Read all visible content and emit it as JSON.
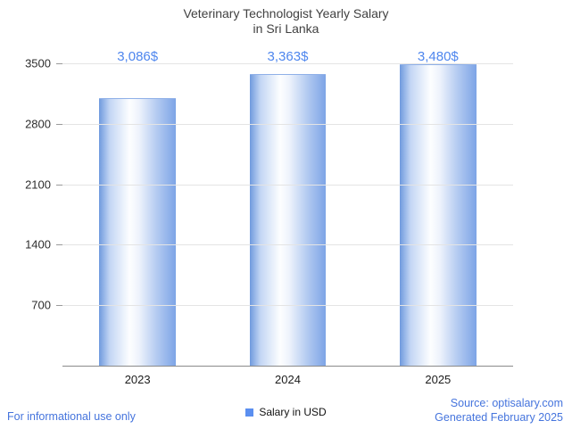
{
  "chart_data": {
    "type": "bar",
    "title": "Veterinary Technologist Yearly Salary in Sri Lanka",
    "title_lines": [
      "Veterinary Technologist Yearly Salary",
      "in Sri Lanka"
    ],
    "categories": [
      "2023",
      "2024",
      "2025"
    ],
    "values": [
      3086,
      3363,
      3480
    ],
    "value_labels": [
      "3,086$",
      "3,363$",
      "3,480$"
    ],
    "xlabel": "",
    "ylabel": "",
    "ylim": [
      0,
      3500
    ],
    "yticks": [
      700,
      1400,
      2100,
      2800,
      3500
    ],
    "grid": true,
    "legend_position": "bottom-center",
    "legend": [
      {
        "label": "Salary in USD",
        "color": "#5b8ff0"
      }
    ],
    "bar_color_edge": "#7da4e6",
    "bar_color_center": "#ffffff"
  },
  "footer": {
    "left_note": "For informational use only",
    "source": "Source: optisalary.com",
    "generated": "Generated February 2025"
  },
  "colors": {
    "value_label_blue": "#4e86ee",
    "footer_blue": "#4574dd",
    "title_gray": "#414141",
    "gridline": "#e4e4e4",
    "baseline": "#8a8a8a"
  }
}
